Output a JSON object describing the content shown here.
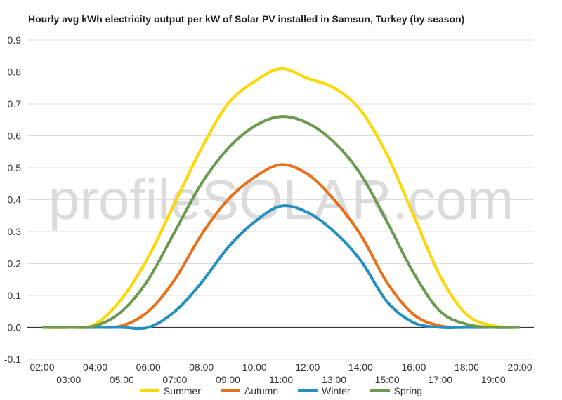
{
  "chart_data": {
    "type": "line",
    "title": "Hourly avg kWh electricity output per kW of Solar PV installed in Samsun, Turkey (by season)",
    "xlabel": "",
    "ylabel": "",
    "ylim": [
      -0.1,
      0.9
    ],
    "yticks": [
      "0.9",
      "0.8",
      "0.7",
      "0.6",
      "0.5",
      "0.4",
      "0.3",
      "0.2",
      "0.1",
      "0.0",
      "-0.1"
    ],
    "x": [
      "02:00",
      "03:00",
      "04:00",
      "05:00",
      "06:00",
      "07:00",
      "08:00",
      "09:00",
      "10:00",
      "11:00",
      "12:00",
      "13:00",
      "14:00",
      "15:00",
      "16:00",
      "17:00",
      "18:00",
      "19:00",
      "20:00"
    ],
    "grid": true,
    "legend": "bottom",
    "watermark": "profileSOLAR.com",
    "series": [
      {
        "name": "Summer",
        "color": "#FFD700",
        "values": [
          0,
          0,
          0.01,
          0.09,
          0.22,
          0.39,
          0.56,
          0.7,
          0.77,
          0.81,
          0.78,
          0.75,
          0.68,
          0.54,
          0.35,
          0.16,
          0.04,
          0.005,
          0
        ]
      },
      {
        "name": "Autumn",
        "color": "#E8701A",
        "values": [
          0,
          0,
          0,
          0.005,
          0.05,
          0.15,
          0.29,
          0.4,
          0.47,
          0.51,
          0.48,
          0.4,
          0.29,
          0.14,
          0.04,
          0.005,
          0,
          0,
          0
        ]
      },
      {
        "name": "Winter",
        "color": "#2590C0",
        "values": [
          0,
          0,
          0,
          0,
          0,
          0.05,
          0.14,
          0.25,
          0.33,
          0.38,
          0.36,
          0.3,
          0.21,
          0.08,
          0.015,
          0,
          0,
          0,
          0
        ]
      },
      {
        "name": "Spring",
        "color": "#6A9A50",
        "values": [
          0,
          0,
          0.005,
          0.05,
          0.15,
          0.3,
          0.45,
          0.56,
          0.63,
          0.66,
          0.64,
          0.58,
          0.48,
          0.33,
          0.17,
          0.05,
          0.01,
          0,
          0
        ]
      }
    ]
  }
}
